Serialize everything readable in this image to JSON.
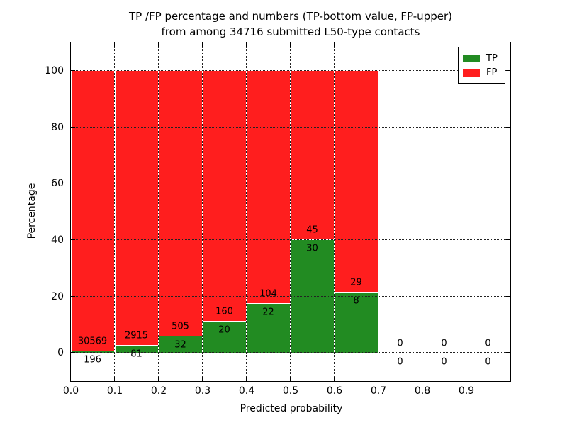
{
  "chart_data": {
    "type": "bar",
    "stacked": true,
    "title_line1": "TP /FP percentage and numbers (TP-bottom value, FP-upper)",
    "title_line2": "from among 34716 submitted L50-type contacts",
    "xlabel": "Predicted probability",
    "ylabel": "Percentage",
    "xlim": [
      0.0,
      1.0
    ],
    "ylim": [
      -10,
      110
    ],
    "xticks": [
      "0.0",
      "0.1",
      "0.2",
      "0.3",
      "0.4",
      "0.5",
      "0.6",
      "0.7",
      "0.8",
      "0.9"
    ],
    "yticks": [
      0,
      20,
      40,
      60,
      80,
      100
    ],
    "grid": true,
    "axisbelow": false,
    "bar_width": 0.1,
    "bin_starts": [
      0.0,
      0.1,
      0.2,
      0.3,
      0.4,
      0.5,
      0.6,
      0.7,
      0.8,
      0.9
    ],
    "series": [
      {
        "name": "TP",
        "color": "#228b22",
        "counts": [
          196,
          81,
          32,
          20,
          22,
          30,
          8,
          0,
          0,
          0
        ]
      },
      {
        "name": "FP",
        "color": "#ff1e1e",
        "counts": [
          30569,
          2915,
          505,
          160,
          104,
          45,
          29,
          0,
          0,
          0
        ]
      }
    ],
    "tp_percent": [
      0.64,
      2.7,
      5.96,
      11.11,
      17.46,
      40.0,
      21.62,
      null,
      null,
      null
    ],
    "total_bar_percent": 100,
    "legend": {
      "position": "upper right",
      "entries": [
        {
          "label": "TP",
          "color": "#228b22"
        },
        {
          "label": "FP",
          "color": "#ff1e1e"
        }
      ]
    },
    "gridline_color": "#222222",
    "text_color": "#000000"
  }
}
